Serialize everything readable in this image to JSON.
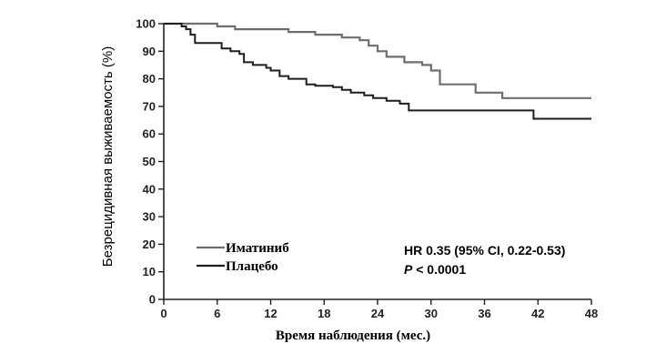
{
  "chart_data": {
    "type": "line",
    "step": true,
    "title": "",
    "xlabel": "Время наблюдения (мес.)",
    "ylabel": "Безрецидивная выживаемость (%)",
    "xlim": [
      0,
      48
    ],
    "ylim": [
      0,
      100
    ],
    "xticks": [
      0,
      6,
      12,
      18,
      24,
      30,
      36,
      42,
      48
    ],
    "yticks": [
      0,
      10,
      20,
      30,
      40,
      50,
      60,
      70,
      80,
      90,
      100
    ],
    "grid": false,
    "legend_position": "bottom-left",
    "series": [
      {
        "name": "Иматиниб",
        "color": "#6e6e6e",
        "points": [
          [
            0,
            100
          ],
          [
            4,
            100
          ],
          [
            6,
            99
          ],
          [
            8,
            98
          ],
          [
            12,
            98
          ],
          [
            14,
            97
          ],
          [
            15,
            97
          ],
          [
            17,
            96
          ],
          [
            19,
            96
          ],
          [
            20,
            95
          ],
          [
            22,
            94
          ],
          [
            23,
            92
          ],
          [
            24,
            90
          ],
          [
            25,
            88
          ],
          [
            26,
            88
          ],
          [
            27,
            86
          ],
          [
            29,
            85
          ],
          [
            30,
            83
          ],
          [
            31,
            78
          ],
          [
            34,
            78
          ],
          [
            35,
            75
          ],
          [
            37,
            75
          ],
          [
            38,
            73
          ],
          [
            48,
            73
          ]
        ]
      },
      {
        "name": "Плацебо",
        "color": "#1e1e1e",
        "points": [
          [
            0,
            100
          ],
          [
            2,
            99
          ],
          [
            2.5,
            98
          ],
          [
            3,
            96
          ],
          [
            3.5,
            93
          ],
          [
            6,
            93
          ],
          [
            6.5,
            91
          ],
          [
            7.5,
            90
          ],
          [
            8.5,
            89
          ],
          [
            9,
            86
          ],
          [
            10,
            85
          ],
          [
            11.5,
            84
          ],
          [
            12,
            83
          ],
          [
            13,
            81
          ],
          [
            14,
            80
          ],
          [
            16,
            78
          ],
          [
            17,
            77.5
          ],
          [
            19,
            77
          ],
          [
            20,
            76
          ],
          [
            21,
            75
          ],
          [
            22.5,
            74
          ],
          [
            23.5,
            73
          ],
          [
            25,
            72
          ],
          [
            26.5,
            71
          ],
          [
            27.5,
            68.5
          ],
          [
            41,
            68.5
          ],
          [
            41.5,
            65.5
          ],
          [
            48,
            65.5
          ]
        ]
      }
    ],
    "annotations": {
      "hr": "HR 0.35 (95% CI, 0.22-0.53)",
      "p_italic": "P",
      "p_rest": " < 0.0001"
    }
  }
}
